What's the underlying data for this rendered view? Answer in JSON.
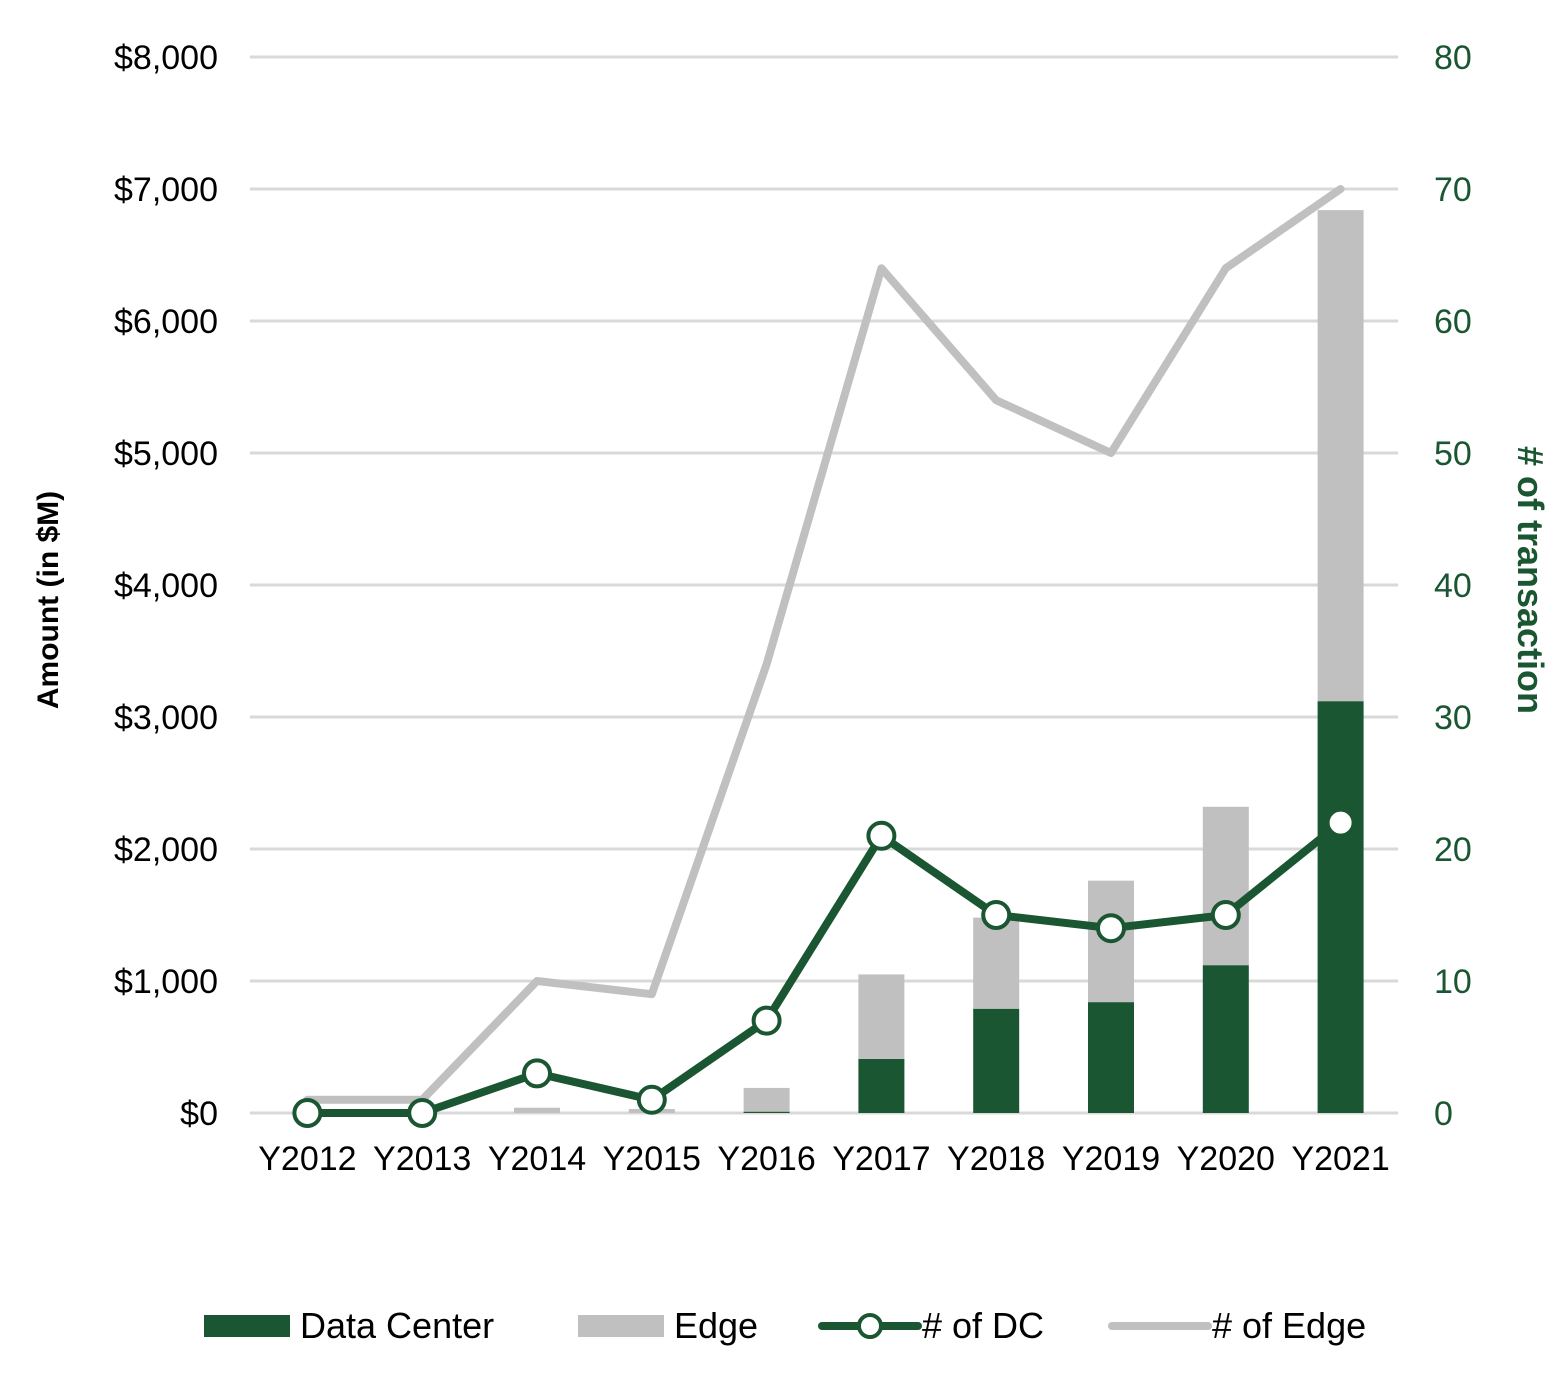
{
  "chart_data": {
    "type": "bar",
    "categories": [
      "Y2012",
      "Y2013",
      "Y2014",
      "Y2015",
      "Y2016",
      "Y2017",
      "Y2018",
      "Y2019",
      "Y2020",
      "Y2021"
    ],
    "bar_series": [
      {
        "name": "Data Center",
        "color": "#1a5631",
        "values": [
          0,
          0,
          0,
          0,
          10,
          410,
          790,
          840,
          1120,
          3120
        ]
      },
      {
        "name": "Edge",
        "color": "#c0c0c0",
        "values": [
          0,
          0,
          40,
          30,
          180,
          640,
          690,
          920,
          1200,
          3720
        ]
      }
    ],
    "line_series": [
      {
        "name": "# of DC",
        "color": "#1a5631",
        "markers": true,
        "values": [
          0,
          0,
          3,
          1,
          7,
          21,
          15,
          14,
          15,
          22
        ]
      },
      {
        "name": "# of Edge",
        "color": "#c0c0c0",
        "markers": false,
        "values": [
          1,
          1,
          10,
          9,
          34,
          64,
          54,
          50,
          64,
          70
        ]
      }
    ],
    "legend_order": [
      "Data Center",
      "Edge",
      "# of DC",
      "# of Edge"
    ],
    "left_axis": {
      "label": "Amount (in $M)",
      "range": [
        0,
        8000
      ],
      "ticks": [
        "$0",
        "$1,000",
        "$2,000",
        "$3,000",
        "$4,000",
        "$5,000",
        "$6,000",
        "$7,000",
        "$8,000"
      ]
    },
    "right_axis": {
      "label": "# of transaction",
      "color": "#1a5631",
      "range": [
        0,
        80
      ],
      "ticks": [
        "0",
        "10",
        "20",
        "30",
        "40",
        "50",
        "60",
        "70",
        "80"
      ]
    },
    "stacked": true,
    "grid": true,
    "legend_position": "bottom"
  }
}
